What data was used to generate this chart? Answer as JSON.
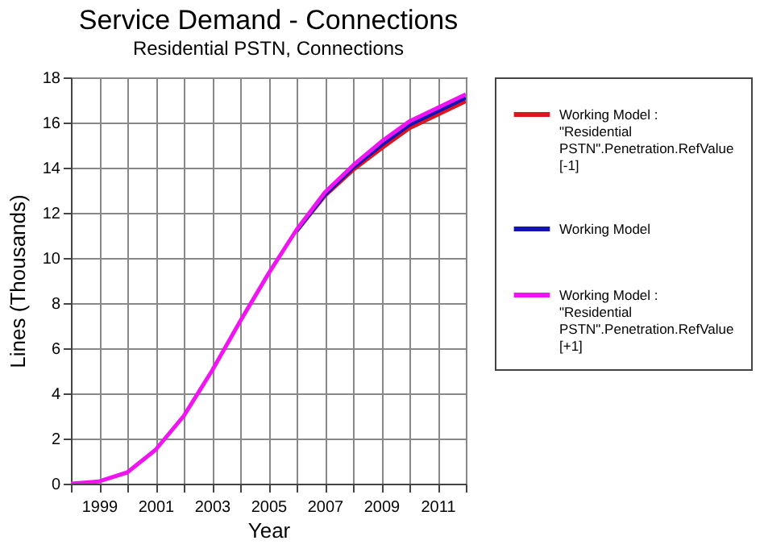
{
  "chart_data": {
    "type": "line",
    "title": "Service Demand - Connections",
    "subtitle": "Residential PSTN, Connections",
    "xlabel": "Year",
    "ylabel": "Lines (Thousands)",
    "x": [
      1998,
      1999,
      2000,
      2001,
      2002,
      2003,
      2004,
      2005,
      2006,
      2007,
      2008,
      2009,
      2010,
      2011,
      2012
    ],
    "series": [
      {
        "name": "Working Model : \"Residential PSTN\".Penetration.RefValue [-1]",
        "color": "#e0141e",
        "values": [
          null,
          null,
          null,
          null,
          null,
          null,
          null,
          null,
          11.2,
          12.75,
          13.9,
          14.85,
          15.75,
          16.35,
          16.95
        ]
      },
      {
        "name": "Working Model",
        "color": "#1414b4",
        "values": [
          null,
          null,
          null,
          null,
          null,
          null,
          null,
          null,
          11.2,
          12.8,
          14.0,
          15.0,
          15.9,
          16.5,
          17.1
        ]
      },
      {
        "name": "Working Model : \"Residential PSTN\".Penetration.RefValue [+1]",
        "color": "#f014f0",
        "values": [
          0,
          0.1,
          0.5,
          1.5,
          3.0,
          5.0,
          7.2,
          9.3,
          11.25,
          12.9,
          14.1,
          15.15,
          16.05,
          16.65,
          17.25
        ]
      }
    ],
    "xlim": [
      1998,
      2012
    ],
    "xticks": [
      {
        "value": 1998,
        "label": null
      },
      1999,
      {
        "value": 2000,
        "label": null
      },
      2001,
      {
        "value": 2002,
        "label": null
      },
      2003,
      {
        "value": 2004,
        "label": null
      },
      2005,
      {
        "value": 2006,
        "label": null
      },
      2007,
      {
        "value": 2008,
        "label": null
      },
      2009,
      {
        "value": 2010,
        "label": null
      },
      2011,
      {
        "value": 2012,
        "label": null
      }
    ],
    "ylim": [
      0,
      18
    ],
    "yticks": [
      0,
      2,
      4,
      6,
      8,
      10,
      12,
      14,
      16,
      18
    ],
    "grid": true,
    "legend": "right",
    "marker": "none",
    "line_style": "solid"
  }
}
